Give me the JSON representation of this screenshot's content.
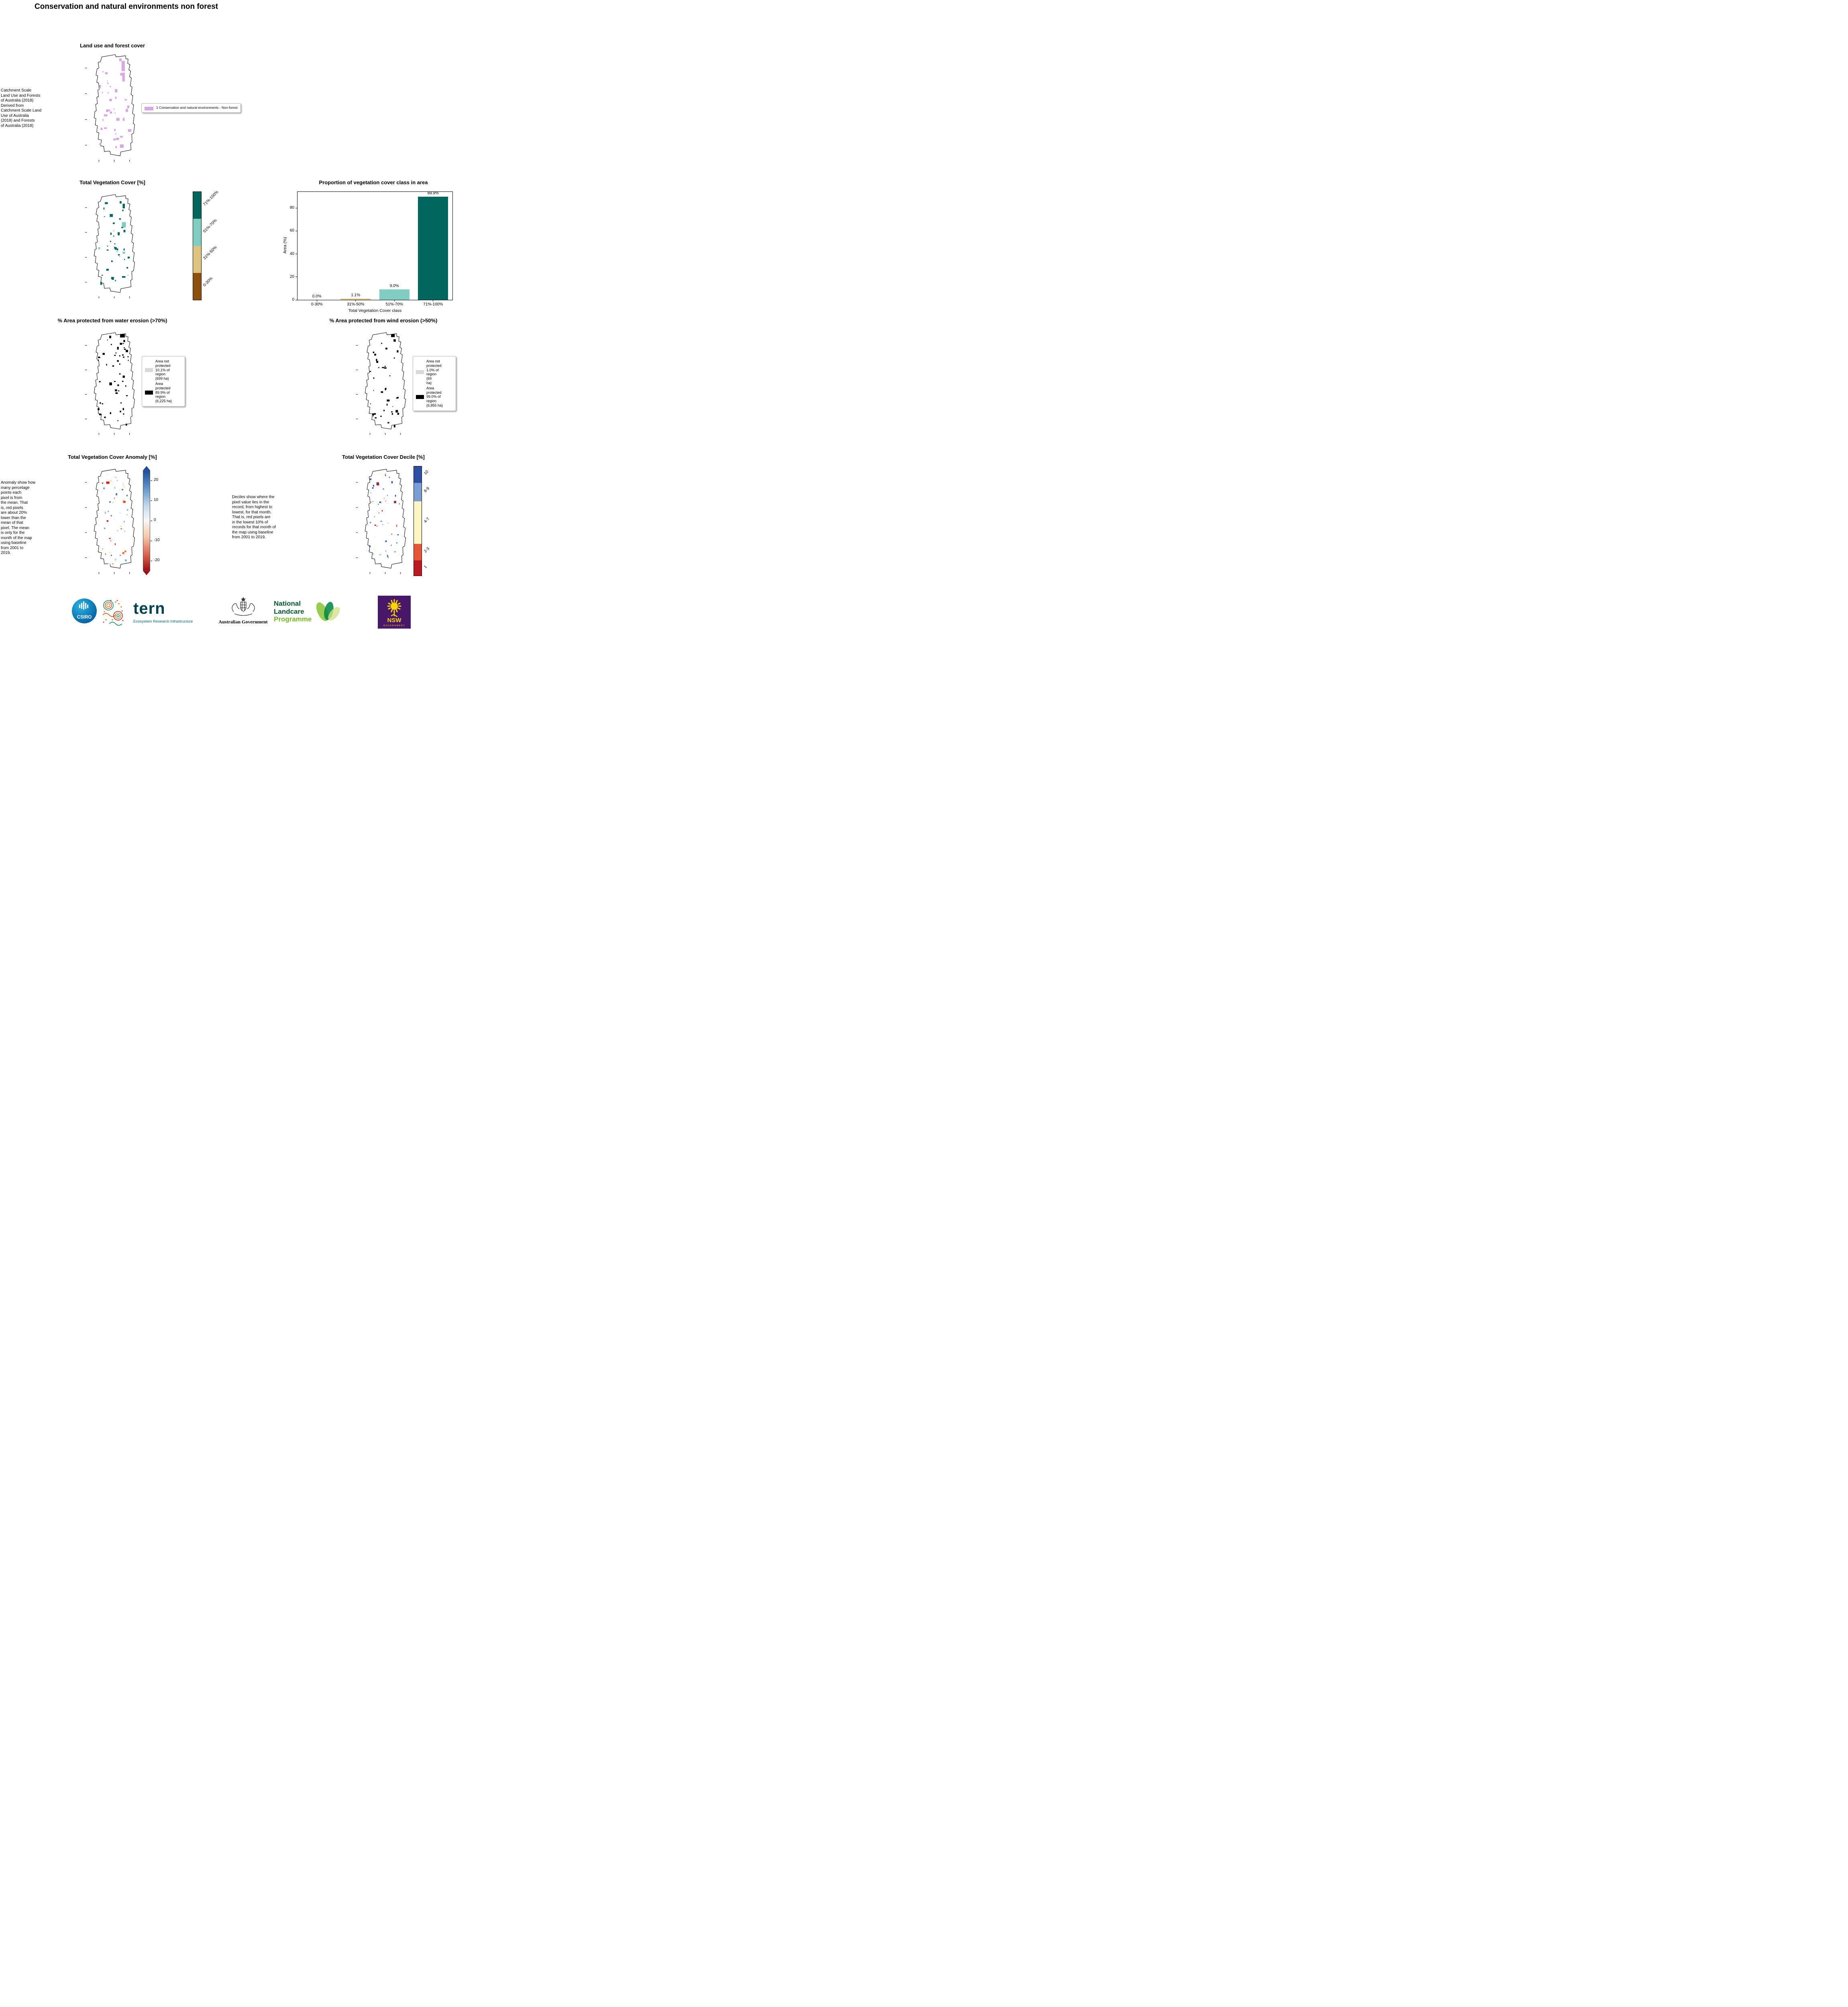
{
  "page": {
    "title": "Conservation and natural environments non forest"
  },
  "land_use": {
    "title": "Land use and forest cover",
    "caption": " Catchment Scale\nLand Use and Forests\nof Australia (2018)\nDerived from\nCatchment Scale Land\nUse of Australia\n(2018) and Forests\nof Australia (2018)",
    "legend_label": "1 Conservation and natural environments - Non-forest",
    "legend_color": "#d9a7e2"
  },
  "veg_cover": {
    "title": "Total Vegetation Cover [%]",
    "colorbar": [
      {
        "label": "71%-100%",
        "color": "#01665e",
        "pct": 25
      },
      {
        "label": "51%-70%",
        "color": "#80cdc1",
        "pct": 25
      },
      {
        "label": "31%-50%",
        "color": "#dfc27d",
        "pct": 25
      },
      {
        "label": "0-30%",
        "color": "#8c510a",
        "pct": 25
      }
    ]
  },
  "chart_data": {
    "type": "bar",
    "title": "Proportion of vegetation cover class in area",
    "categories": [
      "0-30%",
      "31%-50%",
      "51%-70%",
      "71%-100%"
    ],
    "values": [
      0.0,
      1.1,
      9.0,
      89.9
    ],
    "bar_labels": [
      "0.0%",
      "1.1%",
      "9.0%",
      "89.9%"
    ],
    "bar_colors": [
      "#8c510a",
      "#dfc27d",
      "#80cdc1",
      "#01665e"
    ],
    "xlabel": "Total Vegetation Cover class",
    "ylabel": "Area (%)",
    "ylim": [
      0,
      94
    ],
    "yticks": [
      0,
      20,
      40,
      60,
      80
    ],
    "grid": false,
    "legend_position": "none"
  },
  "water_erosion": {
    "title": "% Area protected from water erosion (>70%)",
    "legend": [
      {
        "label": "Area not\nprotected\n10.1% of\nregion\n(699 ha)",
        "color": "#d9d9d9"
      },
      {
        "label": "Area\nprotected\n89.9% of\nregion\n(6,225 ha)",
        "color": "#000000"
      }
    ]
  },
  "wind_erosion": {
    "title": "% Area protected from wind erosion (>50%)",
    "legend": [
      {
        "label": "Area not\nprotected\n1.0% of\nregion\n(69\nha)",
        "color": "#d9d9d9"
      },
      {
        "label": "Area\nprotected\n99.0% of\nregion\n(6,855 ha)",
        "color": "#000000"
      }
    ]
  },
  "anomaly": {
    "title": "Total Vegetation Cover Anomaly [%]",
    "caption": "Anomaly show how\nmany percetage\npoints each\npixel is from\nthe mean. That\nis, red pixels\nare about 20%\nlower than the\nmean of that\npixel. The mean\nis only for the\nmonth of the map\nusing baseline\nfrom 2001 to\n2019.",
    "colorbar_ticks": [
      "20",
      "10",
      "0",
      "-10",
      "-20"
    ],
    "colorbar_top_color": "#1f4e9c",
    "colorbar_bottom_color": "#9e1016"
  },
  "decile": {
    "title": "Total Vegetation Cover Decile [%]",
    "caption": "Deciles show where the\npixel value lies in the\nrecord, from highest to\nlowest, for that month.\nThat is, red pixels are\nin the lowest 10% of\nrecords for that month of\nthe map using baseline\nfrom 2001 to 2019.",
    "colorbar": [
      {
        "label": "10",
        "color": "#2c4ea3",
        "pct": 15
      },
      {
        "label": "8-9",
        "color": "#7b9dd1",
        "pct": 17
      },
      {
        "label": "4-7",
        "color": "#fdf6c3",
        "pct": 39
      },
      {
        "label": "2-3",
        "color": "#e65538",
        "pct": 15
      },
      {
        "label": "1",
        "color": "#bb1a21",
        "pct": 14
      }
    ]
  },
  "maps": {
    "land_use": {
      "seed": 7,
      "count": 36,
      "sizes": [
        2,
        7
      ],
      "colors": [
        "#d9a7e2"
      ],
      "fixed": [
        [
          92,
          22,
          9,
          26,
          "#d9a7e2"
        ],
        [
          94,
          52,
          7,
          22,
          "#d9a7e2"
        ],
        [
          60,
          150,
          6,
          5,
          "#d9a7e2"
        ],
        [
          44,
          190,
          8,
          4,
          "#d9a7e2"
        ]
      ]
    },
    "veg_cover": {
      "seed": 11,
      "count": 40,
      "sizes": [
        2,
        6
      ],
      "colors": [
        "#01665e",
        "#01665e",
        "#01665e",
        "#80cdc1"
      ],
      "fixed": [
        [
          93,
          78,
          11,
          14,
          "#80cdc1"
        ],
        [
          95,
          30,
          6,
          12,
          "#01665e"
        ],
        [
          50,
          200,
          7,
          5,
          "#01665e"
        ]
      ]
    },
    "water_erosion": {
      "seed": 23,
      "count": 46,
      "sizes": [
        2,
        5
      ],
      "colors": [
        "#000000"
      ],
      "fixed": [
        [
          88,
          10,
          13,
          9,
          "#000000"
        ],
        [
          95,
          120,
          6,
          6,
          "#000000"
        ],
        [
          40,
          60,
          6,
          5,
          "#000000"
        ]
      ]
    },
    "wind_erosion": {
      "seed": 31,
      "count": 38,
      "sizes": [
        2,
        5
      ],
      "colors": [
        "#000000"
      ],
      "fixed": [
        [
          88,
          10,
          10,
          8,
          "#000000"
        ],
        [
          42,
          62,
          5,
          5,
          "#000000"
        ]
      ]
    },
    "anomaly": {
      "seed": 43,
      "count": 58,
      "sizes": [
        1.5,
        3.5
      ],
      "colors": [
        "#d73027",
        "#f46d43",
        "#fee090",
        "#abd9e9",
        "#74add1",
        "#4575b4",
        "#e0f3f8"
      ],
      "fixed": [
        [
          50,
          38,
          9,
          6,
          "#cc2222"
        ],
        [
          96,
          88,
          7,
          5,
          "#dd3311"
        ],
        [
          60,
          34,
          5,
          4,
          "#fee090"
        ]
      ]
    },
    "decile": {
      "seed": 53,
      "count": 52,
      "sizes": [
        1.5,
        3.5
      ],
      "colors": [
        "#2c4ea3",
        "#7b9dd1",
        "#e65538",
        "#bb1a21",
        "#fdf6c3",
        "#7b9dd1",
        "#2c4ea3"
      ],
      "fixed": [
        [
          48,
          40,
          7,
          8,
          "#bb1a21"
        ],
        [
          96,
          88,
          6,
          6,
          "#bb1a21"
        ],
        [
          30,
          30,
          4,
          4,
          "#2c4ea3"
        ]
      ]
    }
  },
  "footer": {
    "csiro_label": "CSIRO",
    "tern_label": "tern",
    "tern_subtitle": "Ecosystem Research Infrastructure",
    "aus_gov_label": "Australian Government",
    "landcare_line1": "National",
    "landcare_line2": "Landcare",
    "landcare_line3": "Programme",
    "nsw_label": "NSW",
    "nsw_sub": "GOVERNMENT"
  }
}
